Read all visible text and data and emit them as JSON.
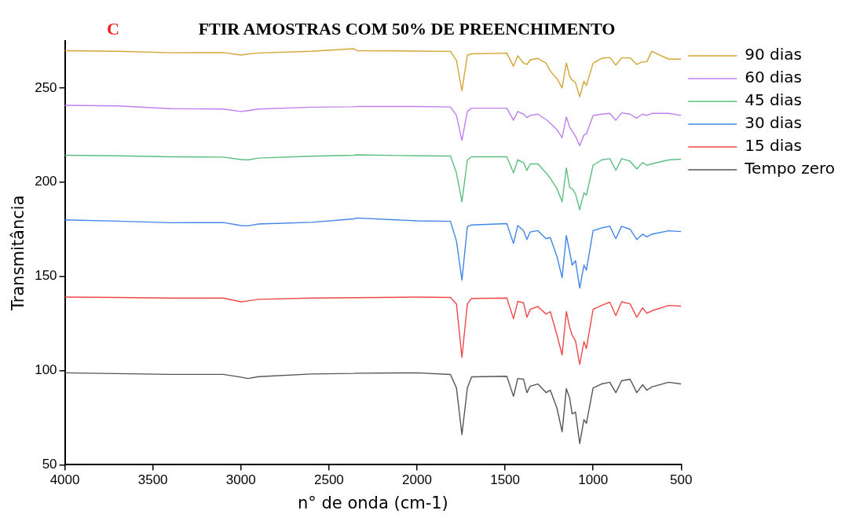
{
  "chart_data": {
    "type": "line",
    "title": "FTIR AMOSTRAS COM 50% DE PREENCHIMENTO",
    "annotations": [
      "C"
    ],
    "xlabel": "n° de onda (cm-1)",
    "ylabel": "Transmitância",
    "x": [
      4000,
      3700,
      3400,
      3100,
      3000,
      2960,
      2900,
      2600,
      2360,
      2340,
      2000,
      1810,
      1776,
      1745,
      1714,
      1690,
      1490,
      1452,
      1428,
      1395,
      1376,
      1357,
      1314,
      1267,
      1243,
      1205,
      1176,
      1152,
      1133,
      1119,
      1100,
      1076,
      1052,
      1038,
      1000,
      952,
      905,
      871,
      838,
      790,
      752,
      719,
      695,
      667,
      571,
      500
    ],
    "xlim": [
      4000,
      500
    ],
    "xticks": [
      4000,
      3500,
      3000,
      2500,
      2000,
      1500,
      1000,
      500
    ],
    "ylim": [
      50,
      275
    ],
    "yticks": [
      50,
      100,
      150,
      200,
      250
    ],
    "grid": false,
    "legend": "top right",
    "marker": "none",
    "line_style": "solid",
    "series": [
      {
        "name": "90 dias",
        "color": "#d4a537",
        "values": [
          269.8,
          269.5,
          268.7,
          268.8,
          267.5,
          268,
          268.6,
          269.5,
          270.8,
          269.8,
          269.6,
          269.4,
          264.6,
          248.6,
          267.4,
          268.1,
          268.5,
          261.5,
          267.1,
          263.2,
          262.5,
          264.9,
          265.7,
          263.2,
          259,
          254.9,
          250,
          263.2,
          256.3,
          254.2,
          252.8,
          245.4,
          253.5,
          251.4,
          263.2,
          265.7,
          266.2,
          262.1,
          266,
          266,
          262.5,
          263.9,
          263.9,
          269.4,
          265.3,
          265.3
        ]
      },
      {
        "name": "60 dias",
        "color": "#bd80ee",
        "values": [
          240.8,
          240.5,
          239,
          238.8,
          237.5,
          238,
          238.8,
          239.8,
          240,
          240.2,
          240.2,
          239.9,
          235.4,
          222.2,
          237.5,
          239.3,
          239.3,
          232.9,
          237.5,
          236.1,
          234.3,
          235.4,
          236.1,
          233.3,
          231.3,
          227.8,
          223.6,
          234.7,
          229.2,
          227.1,
          224.3,
          219.4,
          225,
          225.7,
          235.4,
          236.1,
          236.5,
          232.9,
          236.8,
          236.1,
          234,
          236.1,
          235.4,
          236.5,
          236.5,
          235.4
        ]
      },
      {
        "name": "45 dias",
        "color": "#5cbf7f",
        "values": [
          214.3,
          214,
          213.5,
          213.3,
          212,
          211.8,
          212.8,
          213.8,
          214.3,
          214.5,
          214,
          213.9,
          204.9,
          189.6,
          211.8,
          213.5,
          213.5,
          204.9,
          211.8,
          210.4,
          206.3,
          209.7,
          209.7,
          204.9,
          202.1,
          196.5,
          189.6,
          207.6,
          197.2,
          196.5,
          193.8,
          185.4,
          194.4,
          193.1,
          209,
          211.8,
          212.5,
          206.3,
          212.5,
          211.1,
          207,
          210.4,
          209,
          209.7,
          211.8,
          212.2
        ]
      },
      {
        "name": "30 dias",
        "color": "#3f86e8",
        "values": [
          180,
          179.3,
          178.5,
          178.6,
          177,
          176.8,
          177.8,
          178.7,
          180.5,
          181,
          179.5,
          179.2,
          168.8,
          148,
          176.4,
          177.3,
          178,
          167.5,
          177,
          174.3,
          169.6,
          173.6,
          174.3,
          170,
          170.6,
          160.4,
          149.3,
          171.7,
          163,
          156,
          158.3,
          143.8,
          156,
          153.3,
          174.3,
          175.7,
          176.6,
          170,
          176.6,
          175,
          169.6,
          172.4,
          171,
          172.4,
          174.2,
          173.8
        ]
      },
      {
        "name": "15 dias",
        "color": "#f04848",
        "values": [
          139,
          138.8,
          138.5,
          138.5,
          136.5,
          137,
          137.8,
          138.5,
          138.7,
          138.7,
          139,
          138.8,
          135.4,
          107,
          135.4,
          138.3,
          138.5,
          127.5,
          136.7,
          136,
          128.3,
          132.5,
          134,
          130,
          131.3,
          118.8,
          108.3,
          131.3,
          123,
          118.8,
          115.8,
          103.3,
          115.4,
          111.7,
          132.5,
          134.6,
          136.3,
          129.2,
          136.5,
          135.4,
          128.3,
          133.3,
          130.4,
          131.7,
          134.6,
          134.2
        ]
      },
      {
        "name": "Tempo zero",
        "color": "#555555",
        "values": [
          98.8,
          98.4,
          98,
          98,
          96.5,
          95.8,
          96.8,
          98.2,
          98.5,
          98.6,
          98.8,
          97.9,
          90.8,
          66,
          90.8,
          96.7,
          97,
          86.3,
          95.8,
          95.4,
          88.3,
          91.7,
          92.9,
          88.3,
          89.6,
          80,
          67.5,
          90.4,
          85.4,
          77,
          78,
          61.3,
          74,
          72,
          90.8,
          92.9,
          93.8,
          88.3,
          94.6,
          95.4,
          88.3,
          92.5,
          89.6,
          91.3,
          93.8,
          92.9
        ]
      }
    ]
  }
}
